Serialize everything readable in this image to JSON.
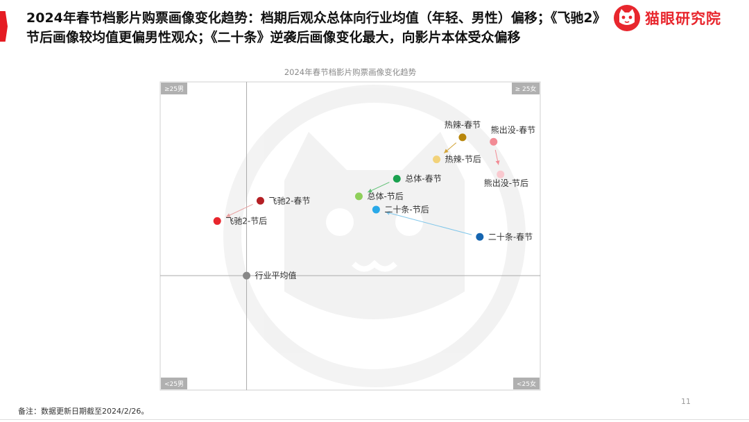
{
  "header": {
    "headline": "2024年春节档影片购票画像变化趋势：档期后观众总体向行业均值（年轻、男性）偏移；《飞驰2》节后画像较均值更偏男性观众；《二十条》逆袭后画像变化最大，向影片本体受众偏移",
    "logo_text": "猫眼研究院",
    "logo_icon": "cat-logo-icon",
    "accent_color": "#e51c23"
  },
  "chart_data": {
    "type": "scatter",
    "title": "2024年春节档影片购票画像变化趋势",
    "xlim": [
      -1,
      3.4
    ],
    "ylim": [
      -1.3,
      2.2
    ],
    "corners": {
      "top_left": "≥25男",
      "top_right": "≥ 25女",
      "bottom_left": "<25男",
      "bottom_right": "<25女"
    },
    "points": [
      {
        "name": "行业平均值",
        "x": 0.0,
        "y": 0.0,
        "color": "#888888"
      },
      {
        "name": "飞驰2-春节",
        "x": 0.16,
        "y": 0.85,
        "color": "#b41f24"
      },
      {
        "name": "飞驰2-节后",
        "x": -0.34,
        "y": 0.62,
        "color": "#e8262d"
      },
      {
        "name": "总体-春节",
        "x": 1.74,
        "y": 1.1,
        "color": "#1aa14f"
      },
      {
        "name": "总体-节后",
        "x": 1.3,
        "y": 0.9,
        "color": "#8ecf5a"
      },
      {
        "name": "热辣-春节",
        "x": 2.5,
        "y": 1.57,
        "color": "#b8860b"
      },
      {
        "name": "热辣-节后",
        "x": 2.2,
        "y": 1.32,
        "color": "#f2d27a"
      },
      {
        "name": "熊出没-春节",
        "x": 2.86,
        "y": 1.52,
        "color": "#f28b95"
      },
      {
        "name": "熊出没-节后",
        "x": 2.94,
        "y": 1.15,
        "color": "#f9c9cf"
      },
      {
        "name": "二十条-春节",
        "x": 2.7,
        "y": 0.44,
        "color": "#1565b0"
      },
      {
        "name": "二十条-节后",
        "x": 1.5,
        "y": 0.75,
        "color": "#29a9e8"
      }
    ],
    "arrows": [
      {
        "from": "飞驰2-春节",
        "to": "飞驰2-节后",
        "color": "#e8a0a0"
      },
      {
        "from": "总体-春节",
        "to": "总体-节后",
        "color": "#5cbf72"
      },
      {
        "from": "热辣-春节",
        "to": "热辣-节后",
        "color": "#d4a63c"
      },
      {
        "from": "熊出没-春节",
        "to": "熊出没-节后",
        "color": "#f28b95"
      },
      {
        "from": "二十条-春节",
        "to": "二十条-节后",
        "color": "#7fc6ea"
      }
    ]
  },
  "footer": {
    "note": "备注：数据更新日期截至2024/2/26。",
    "page_number": "11"
  }
}
